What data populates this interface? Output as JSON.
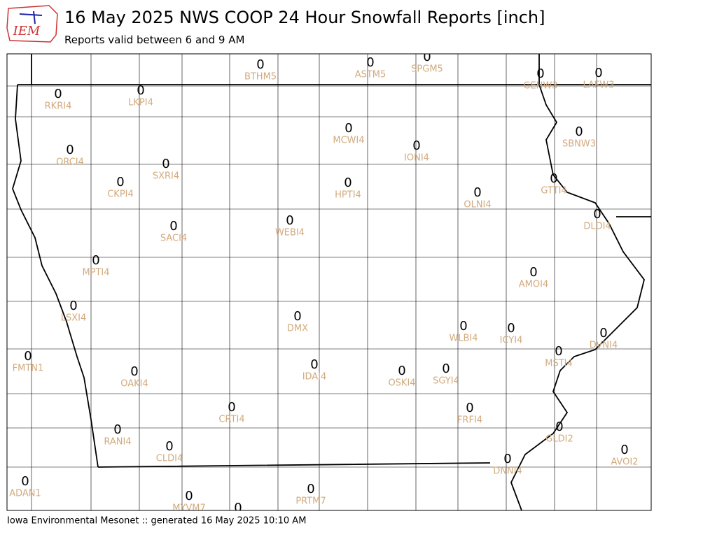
{
  "logo_text": "IEM",
  "title": "16 May 2025 NWS COOP 24 Hour Snowfall Reports [inch]",
  "subtitle": "Reports valid between 6 and 9 AM",
  "footer": "Iowa Environmental Mesonet :: generated 16 May 2025 10:10 AM",
  "stations": [
    {
      "id": "BTHM5",
      "value": 0
    },
    {
      "id": "ASTM5",
      "value": 0
    },
    {
      "id": "SPGM5",
      "value": 0
    },
    {
      "id": "GEHW3",
      "value": 0
    },
    {
      "id": "LAFW3",
      "value": 0
    },
    {
      "id": "RKRI4",
      "value": 0
    },
    {
      "id": "LKPI4",
      "value": 0
    },
    {
      "id": "MCWI4",
      "value": 0
    },
    {
      "id": "ORCI4",
      "value": 0
    },
    {
      "id": "IONI4",
      "value": 0
    },
    {
      "id": "SBNW3",
      "value": 0
    },
    {
      "id": "SXRI4",
      "value": 0
    },
    {
      "id": "CKPI4",
      "value": 0
    },
    {
      "id": "HPTI4",
      "value": 0
    },
    {
      "id": "OLNI4",
      "value": 0
    },
    {
      "id": "GTTI4",
      "value": 0
    },
    {
      "id": "DLDI4",
      "value": 0
    },
    {
      "id": "SACI4",
      "value": 0
    },
    {
      "id": "WEBI4",
      "value": 0
    },
    {
      "id": "MPTI4",
      "value": 0
    },
    {
      "id": "AMOI4",
      "value": 0
    },
    {
      "id": "LSXI4",
      "value": 0
    },
    {
      "id": "DMX",
      "value": 0
    },
    {
      "id": "WLBI4",
      "value": 0
    },
    {
      "id": "ICYI4",
      "value": 0
    },
    {
      "id": "DVNI4",
      "value": 0
    },
    {
      "id": "FMTN1",
      "value": 0
    },
    {
      "id": "MSTI4",
      "value": 0
    },
    {
      "id": "OAKI4",
      "value": 0
    },
    {
      "id": "IDAI4",
      "value": 0
    },
    {
      "id": "OSKI4",
      "value": 0
    },
    {
      "id": "SGYI4",
      "value": 0
    },
    {
      "id": "CRTI4",
      "value": 0
    },
    {
      "id": "FRFI4",
      "value": 0
    },
    {
      "id": "RANI4",
      "value": 0
    },
    {
      "id": "CLDI4",
      "value": 0
    },
    {
      "id": "GLDI2",
      "value": 0
    },
    {
      "id": "AVOI2",
      "value": 0
    },
    {
      "id": "DNNI4",
      "value": 0
    },
    {
      "id": "ADAN1",
      "value": 0
    },
    {
      "id": "MYVM7",
      "value": 0
    },
    {
      "id": "PRTM7",
      "value": 0
    },
    {
      "id": null,
      "value": 0
    }
  ]
}
